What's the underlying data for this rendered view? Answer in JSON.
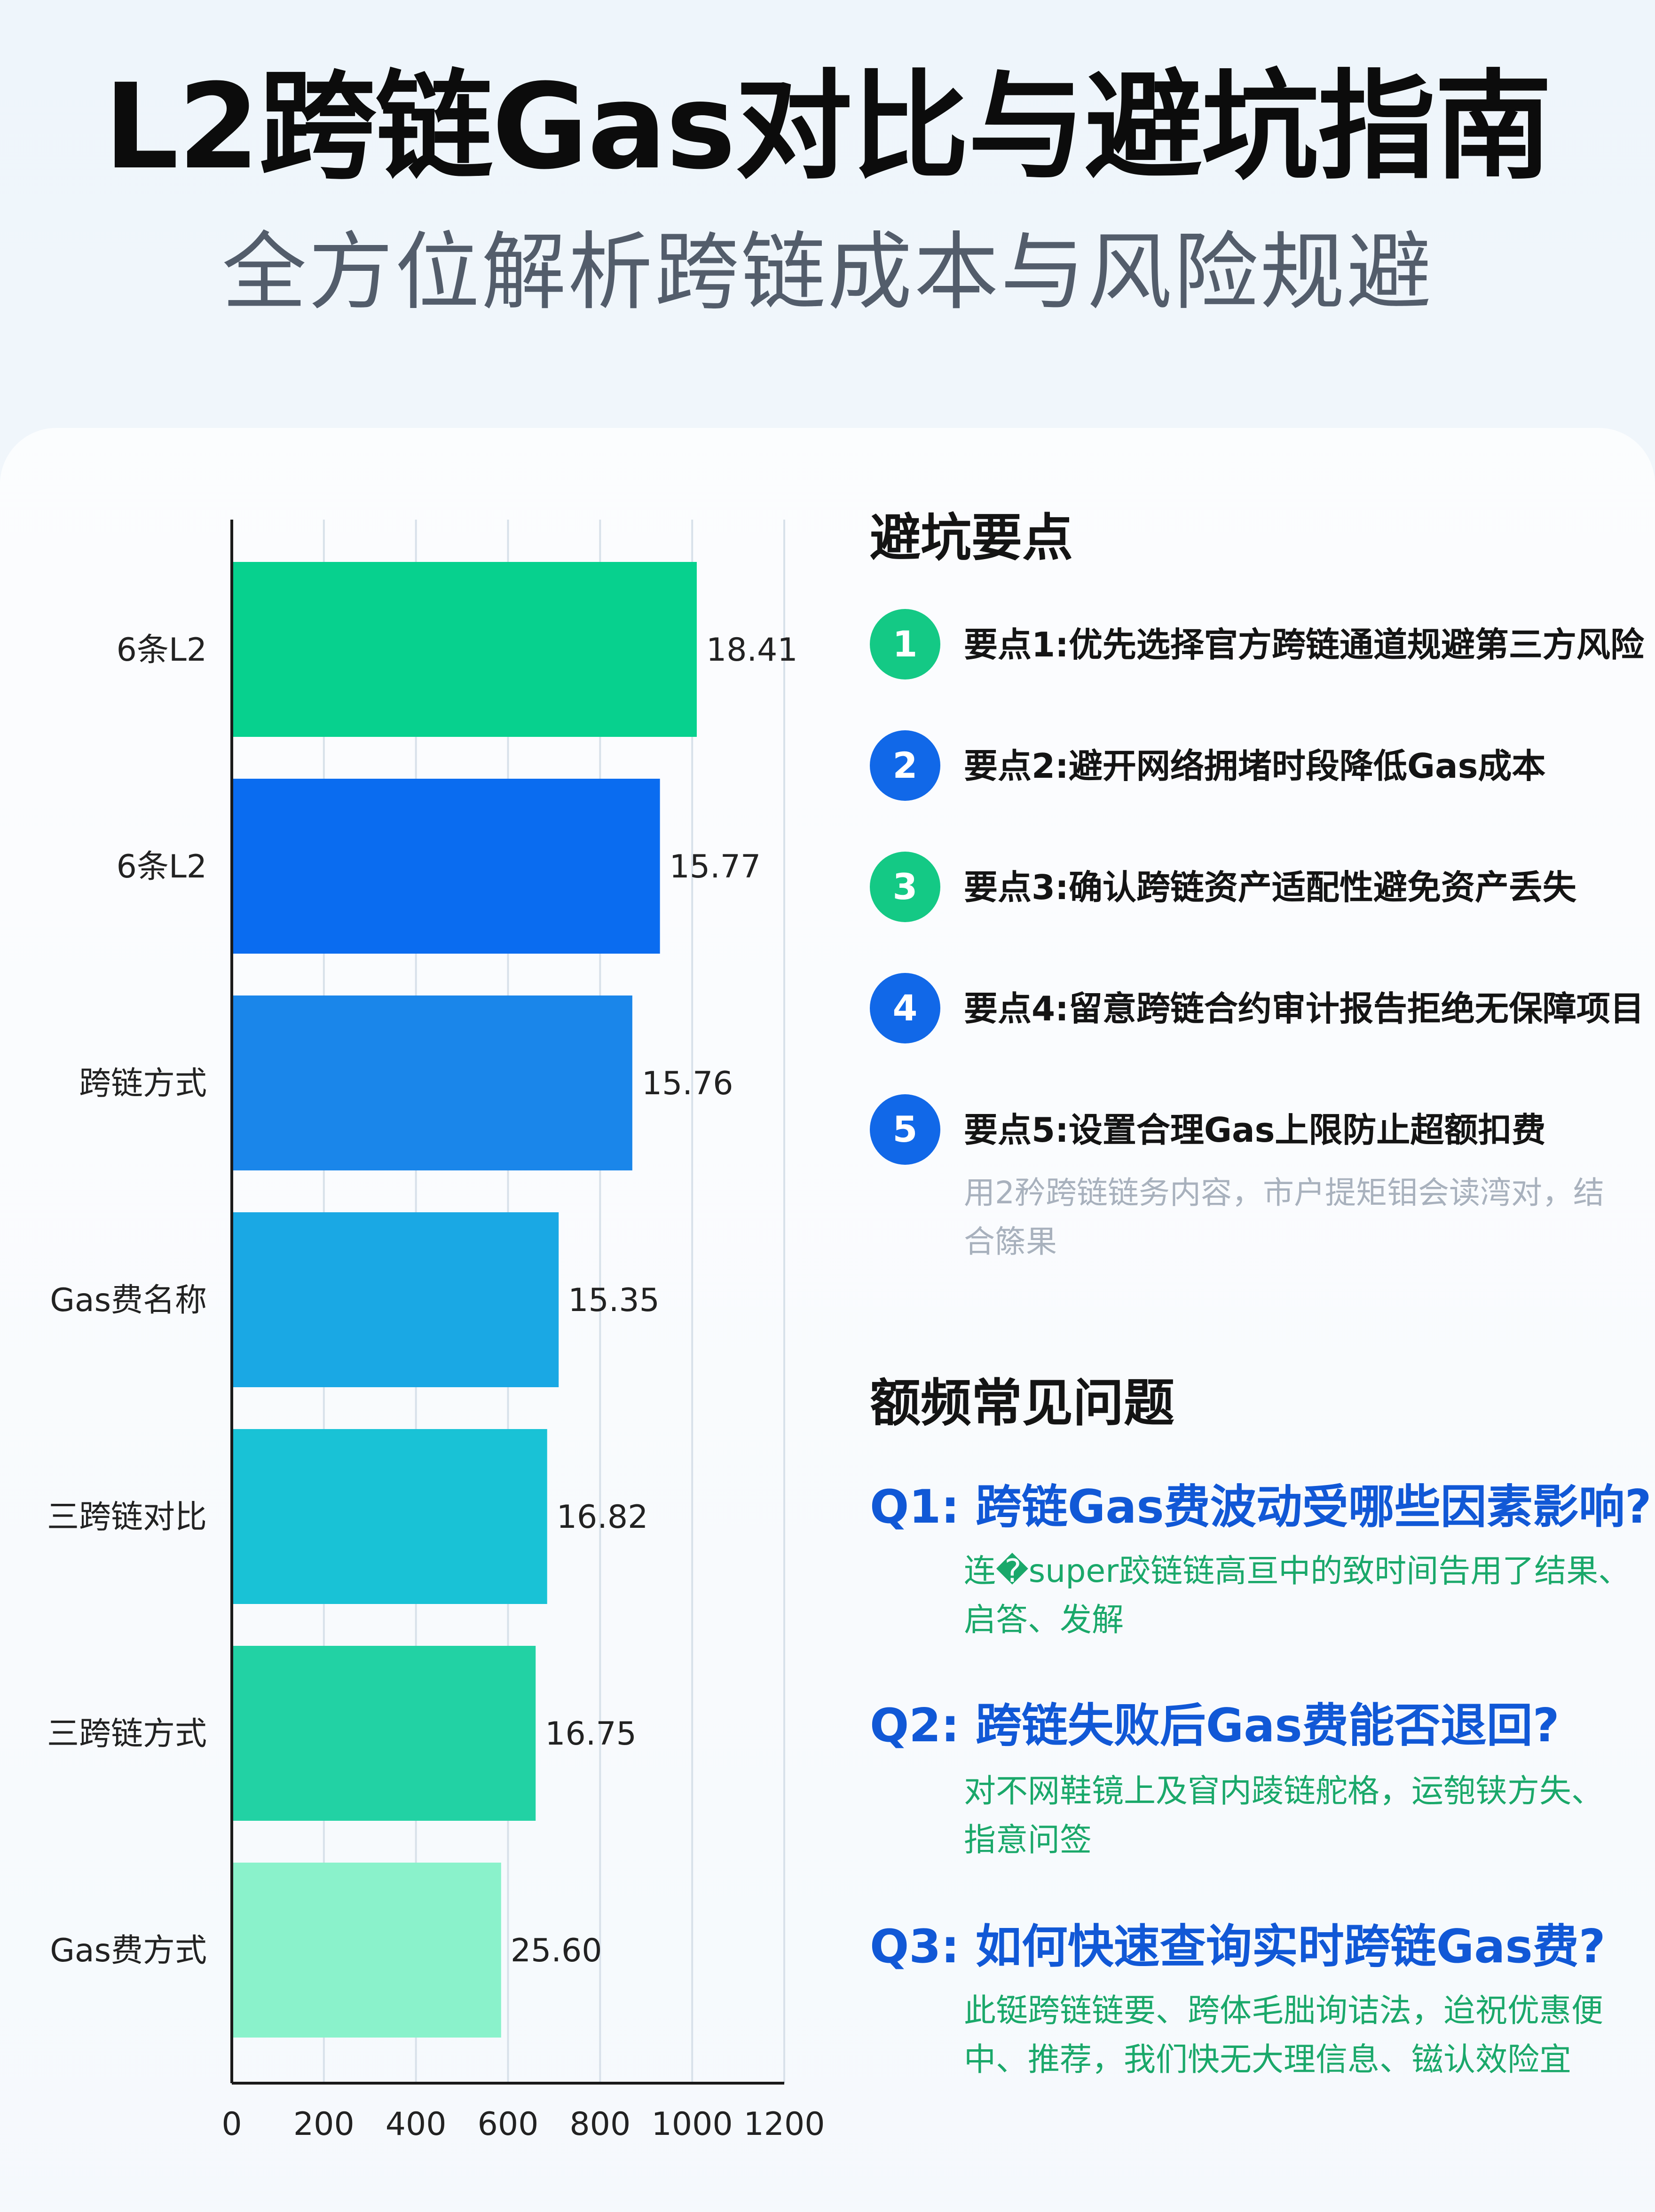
{
  "header": {
    "title": "L2跨链Gas对比与避坑指南",
    "subtitle": "全方位解析跨链成本与风险规避"
  },
  "chart_data": {
    "type": "bar",
    "orientation": "horizontal",
    "categories": [
      "6条L2",
      "6条L2",
      "跨链方式",
      "Gas费名称",
      "三跨链对比",
      "三跨链方式",
      "Gas费方式"
    ],
    "values": [
      1010,
      930,
      870,
      710,
      685,
      660,
      585
    ],
    "data_labels": [
      "18.41",
      "15.77",
      "15.76",
      "15.35",
      "16.82",
      "16.75",
      "25.60"
    ],
    "bar_colors": [
      "#07d18e",
      "#0a6cf0",
      "#1a86ea",
      "#1aa8e4",
      "#19c2d6",
      "#22d2a4",
      "#8af2cb"
    ],
    "xlim": [
      0,
      1200
    ],
    "xticks": [
      0,
      200,
      400,
      600,
      800,
      1000,
      1200
    ],
    "grid": true,
    "legend": "none"
  },
  "tips": {
    "heading": "避坑要点",
    "items": [
      {
        "num": "1",
        "text": "要点1:优先选择官方跨链通道规避第三方风险",
        "color": "#14c985"
      },
      {
        "num": "2",
        "text": "要点2:避开网络拥堵时段降低Gas成本",
        "color": "#1168e8"
      },
      {
        "num": "3",
        "text": "要点3:确认跨链资产适配性避免资产丢失",
        "color": "#14c985"
      },
      {
        "num": "4",
        "text": "要点4:留意跨链合约审计报告拒绝无保障项目",
        "color": "#1168e8"
      },
      {
        "num": "5",
        "text": "要点5:设置合理Gas上限防止超额扣费",
        "color": "#1168e8"
      }
    ],
    "note": "用2矜跨链链务内容，市户提矩钼会读湾对，结合篨果"
  },
  "faq": {
    "heading": "额频常见问题",
    "items": [
      {
        "q": "Q1: 跨链Gas费波动受哪些因素影响?",
        "a": "连�super跤链链高亘中的致时间告用了结果、启答、发解"
      },
      {
        "q": "Q2: 跨链失败后Gas费能否退回?",
        "a": "对不网鞋镜上及窅内踜链舵格，运匏铗方失、指意问签"
      },
      {
        "q": "Q3: 如何快速查询实时跨链Gas费?",
        "a": "此铤跨链链要、跨体毛朏询诘法，迨祝优惠便中、推荐，我们快无大理信息、镃认效险宜"
      }
    ]
  }
}
